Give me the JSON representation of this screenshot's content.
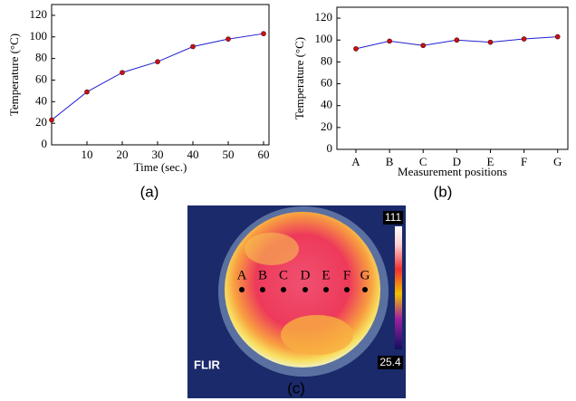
{
  "chart_data": [
    {
      "type": "line",
      "x": [
        0,
        10,
        20,
        30,
        40,
        50,
        60
      ],
      "values": [
        23,
        49,
        67,
        77,
        91,
        98,
        103
      ],
      "xlim": [
        0,
        60
      ],
      "xticks": [
        10,
        20,
        30,
        40,
        50,
        60
      ],
      "ylim": [
        0,
        130
      ],
      "yticks": [
        0,
        20,
        40,
        60,
        80,
        100,
        120
      ],
      "xlabel": "Time (sec.)",
      "ylabel": "Temperature (°C)",
      "color": "#1f1fd0",
      "marker_color": "#d01010"
    },
    {
      "type": "category-line",
      "categories": [
        "A",
        "B",
        "C",
        "D",
        "E",
        "F",
        "G"
      ],
      "values": [
        92,
        99,
        95,
        100,
        98,
        101,
        103
      ],
      "ylim": [
        0,
        130
      ],
      "yticks": [
        0,
        20,
        40,
        60,
        80,
        100,
        120
      ],
      "xlabel": "Measurement positions",
      "ylabel": "Temperature (°C)",
      "color": "#1f1fd0",
      "marker_color": "#d01010"
    }
  ],
  "panel_labels": [
    "(a)",
    "(b)",
    "(c)"
  ],
  "thermal_image": {
    "brand": "FLIR",
    "scale_max": "111",
    "scale_min": "25.4",
    "positions": [
      "A",
      "B",
      "C",
      "D",
      "E",
      "F",
      "G"
    ]
  }
}
